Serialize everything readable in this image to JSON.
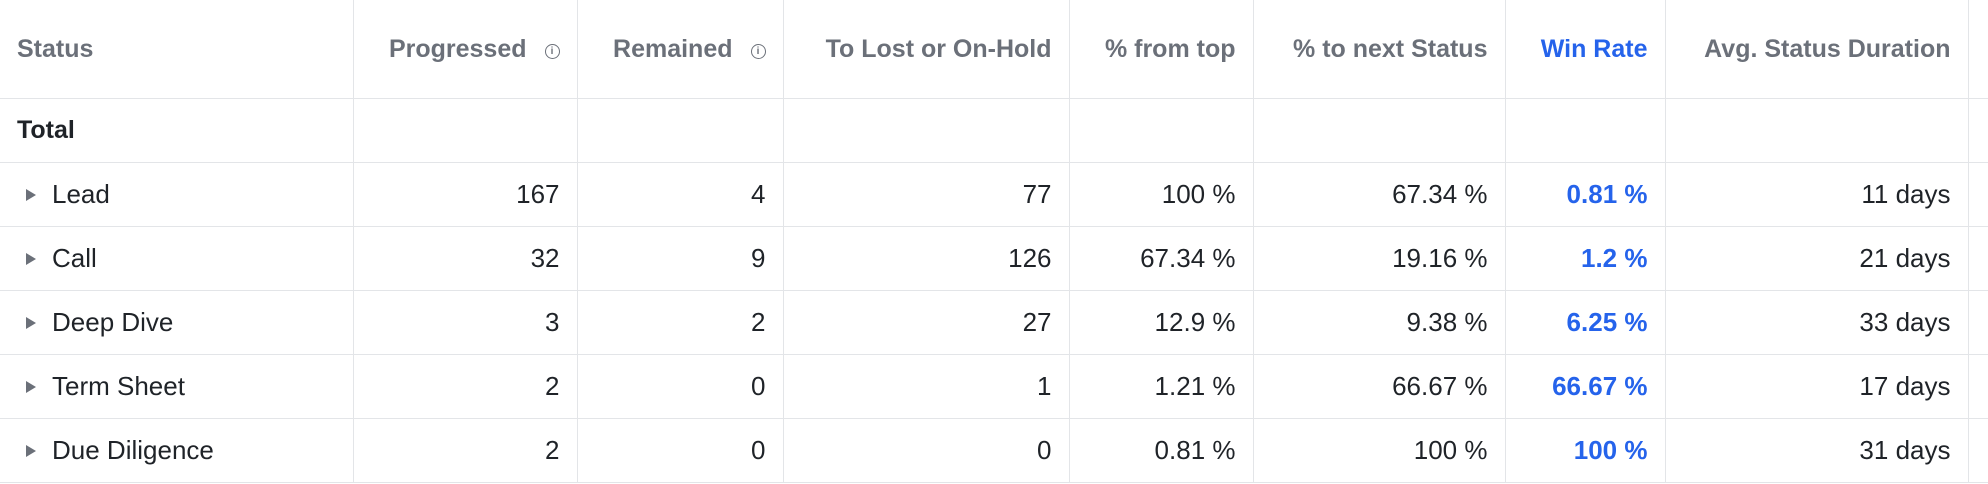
{
  "table": {
    "columns": {
      "status": "Status",
      "progressed": "Progressed",
      "remained": "Remained",
      "to_lost": "To Lost or On-Hold",
      "pct_from_top": "% from top",
      "pct_next": "% to next Status",
      "win_rate": "Win Rate",
      "avg_duration": "Avg. Status Duration"
    },
    "total_label": "Total",
    "rows": [
      {
        "status": "Lead",
        "progressed": "167",
        "remained": "4",
        "to_lost": "77",
        "pct_from_top": "100 %",
        "pct_next": "67.34 %",
        "win_rate": "0.81 %",
        "avg_duration": "11 days"
      },
      {
        "status": "Call",
        "progressed": "32",
        "remained": "9",
        "to_lost": "126",
        "pct_from_top": "67.34 %",
        "pct_next": "19.16 %",
        "win_rate": "1.2 %",
        "avg_duration": "21 days"
      },
      {
        "status": "Deep Dive",
        "progressed": "3",
        "remained": "2",
        "to_lost": "27",
        "pct_from_top": "12.9 %",
        "pct_next": "9.38 %",
        "win_rate": "6.25 %",
        "avg_duration": "33 days"
      },
      {
        "status": "Term Sheet",
        "progressed": "2",
        "remained": "0",
        "to_lost": "1",
        "pct_from_top": "1.21 %",
        "pct_next": "66.67 %",
        "win_rate": "66.67 %",
        "avg_duration": "17 days"
      },
      {
        "status": "Due Diligence",
        "progressed": "2",
        "remained": "0",
        "to_lost": "0",
        "pct_from_top": "0.81 %",
        "pct_next": "100 %",
        "win_rate": "100 %",
        "avg_duration": "31 days"
      }
    ]
  }
}
